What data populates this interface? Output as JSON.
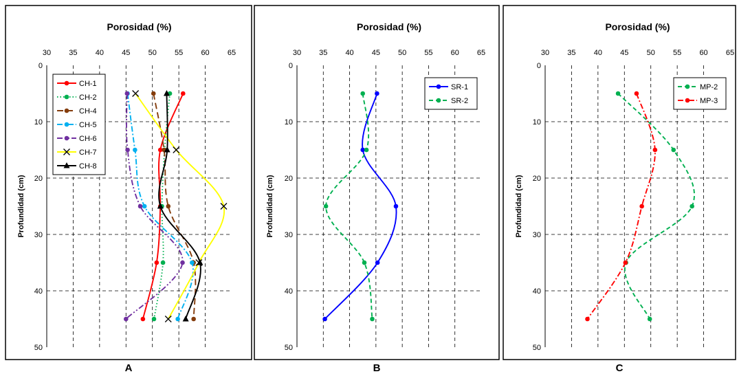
{
  "chart_data": [
    {
      "type": "line",
      "panel_label": "A",
      "title": "Porosidad (%)",
      "xlabel": "",
      "ylabel": "Profundidad  (cm)",
      "xlim": [
        30,
        65
      ],
      "ylim": [
        0,
        50
      ],
      "y_inverted": true,
      "x_axis_position": "top",
      "grid": true,
      "legend_position": "top-left",
      "xticks": [
        "30",
        "35",
        "40",
        "45",
        "50",
        "55",
        "60",
        "65"
      ],
      "yticks": [
        "0",
        "10",
        "20",
        "30",
        "40",
        "50"
      ],
      "series": [
        {
          "name": "CH-1",
          "color": "#ff0000",
          "dash": "solid",
          "marker": "circle",
          "x": [
            55.8,
            51.5,
            51.5,
            50.8,
            48.2
          ],
          "y": [
            5,
            15,
            25,
            35,
            45
          ]
        },
        {
          "name": "CH-2",
          "color": "#00b050",
          "dash": "dotted",
          "marker": "circle",
          "x": [
            53.3,
            52.3,
            51.8,
            52.0,
            50.3
          ],
          "y": [
            5,
            15,
            25,
            35,
            45
          ]
        },
        {
          "name": "CH-4",
          "color": "#843c0c",
          "dash": "longdash",
          "marker": "circle",
          "x": [
            50.2,
            52.2,
            53.0,
            57.8,
            57.8
          ],
          "y": [
            5,
            15,
            25,
            35,
            45
          ]
        },
        {
          "name": "CH-5",
          "color": "#00b0f0",
          "dash": "dashdot",
          "marker": "circle",
          "x": [
            45.3,
            46.7,
            48.5,
            57.5,
            54.8
          ],
          "y": [
            5,
            15,
            25,
            35,
            45
          ]
        },
        {
          "name": "CH-6",
          "color": "#7030a0",
          "dash": "dashdotdot",
          "marker": "circle",
          "x": [
            45.2,
            45.3,
            47.7,
            55.7,
            45.0
          ],
          "y": [
            5,
            15,
            25,
            35,
            45
          ]
        },
        {
          "name": "CH-7",
          "color": "#ffff00",
          "dash": "solid",
          "marker": "x",
          "x": [
            46.8,
            54.5,
            63.5,
            58.8,
            53.0
          ],
          "y": [
            5,
            15,
            25,
            35,
            45
          ]
        },
        {
          "name": "CH-8",
          "color": "#000000",
          "dash": "solid",
          "marker": "triangle",
          "x": [
            52.7,
            52.8,
            51.5,
            59.0,
            56.3
          ],
          "y": [
            5,
            15,
            25,
            35,
            45
          ]
        }
      ]
    },
    {
      "type": "line",
      "panel_label": "B",
      "title": "Porosidad (%)",
      "xlabel": "",
      "ylabel": "Profundidad  (cm)",
      "xlim": [
        30,
        65
      ],
      "ylim": [
        0,
        50
      ],
      "y_inverted": true,
      "x_axis_position": "top",
      "grid": true,
      "legend_position": "top-right",
      "xticks": [
        "30",
        "35",
        "40",
        "45",
        "50",
        "55",
        "60",
        "65"
      ],
      "yticks": [
        "0",
        "10",
        "20",
        "30",
        "40",
        "50"
      ],
      "series": [
        {
          "name": "SR-1",
          "color": "#0000ff",
          "dash": "solid",
          "marker": "circle",
          "x": [
            45.2,
            42.5,
            48.8,
            45.3,
            35.3
          ],
          "y": [
            5,
            15,
            25,
            35,
            45
          ]
        },
        {
          "name": "SR-2",
          "color": "#00b050",
          "dash": "dashed",
          "marker": "circle",
          "x": [
            42.5,
            43.2,
            35.5,
            42.8,
            44.3
          ],
          "y": [
            5,
            15,
            25,
            35,
            45
          ]
        }
      ]
    },
    {
      "type": "line",
      "panel_label": "C",
      "title": "Porosidad (%)",
      "xlabel": "",
      "ylabel": "Profundidad  (cm)",
      "xlim": [
        30,
        65
      ],
      "ylim": [
        0,
        50
      ],
      "y_inverted": true,
      "x_axis_position": "top",
      "grid": true,
      "legend_position": "top-right",
      "xticks": [
        "30",
        "35",
        "40",
        "45",
        "50",
        "55",
        "60",
        "65"
      ],
      "yticks": [
        "0",
        "10",
        "20",
        "30",
        "40",
        "50"
      ],
      "series": [
        {
          "name": "MP-2",
          "color": "#00b050",
          "dash": "dashed",
          "marker": "circle",
          "x": [
            43.8,
            54.3,
            57.8,
            45.3,
            49.8
          ],
          "y": [
            5,
            15,
            25,
            35,
            45
          ]
        },
        {
          "name": "MP-3",
          "color": "#ff0000",
          "dash": "dashdot",
          "marker": "circle",
          "x": [
            47.3,
            50.8,
            48.3,
            45.2,
            38.0
          ],
          "y": [
            5,
            15,
            25,
            35,
            45
          ]
        }
      ]
    }
  ]
}
